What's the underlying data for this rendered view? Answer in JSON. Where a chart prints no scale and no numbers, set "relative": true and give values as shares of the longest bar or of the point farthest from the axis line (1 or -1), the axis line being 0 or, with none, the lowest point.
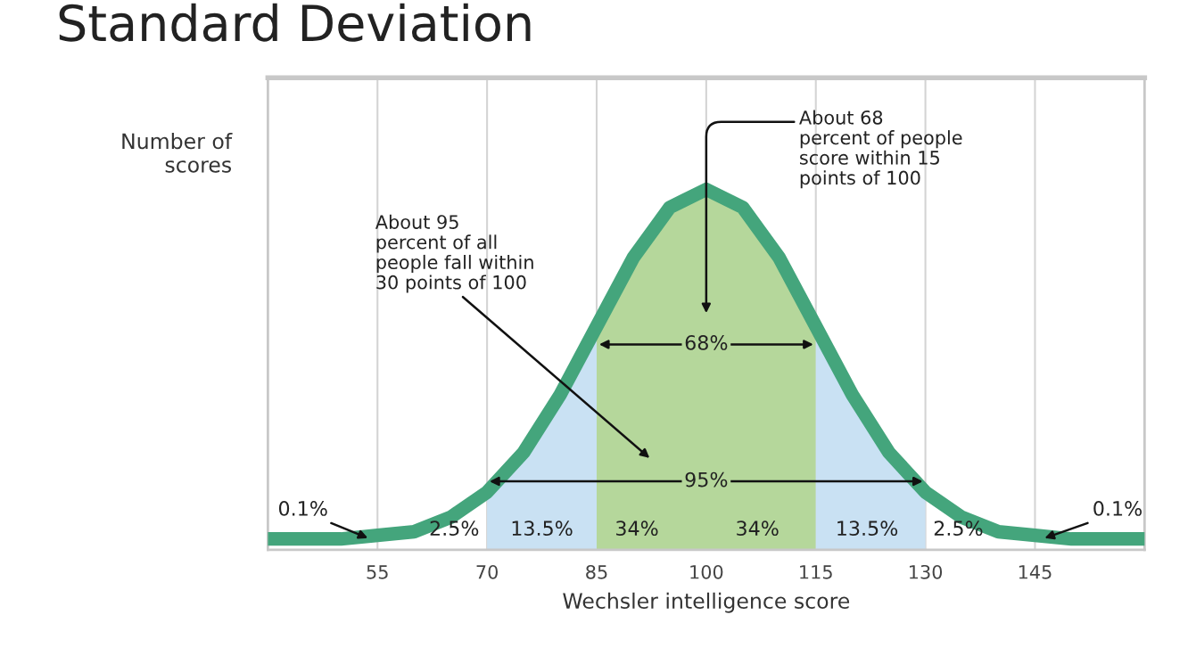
{
  "chart_data": {
    "type": "line",
    "title": "Standard Deviation",
    "xlabel": "Wechsler intelligence score",
    "ylabel": "Number of\nscores",
    "relative": true,
    "xlim": [
      40,
      160
    ],
    "xticks": [
      55,
      70,
      85,
      100,
      115,
      130,
      145
    ],
    "grid": "x",
    "x": [
      40,
      45,
      50,
      55,
      60,
      65,
      70,
      75,
      80,
      85,
      90,
      95,
      100,
      105,
      110,
      115,
      120,
      125,
      130,
      135,
      140,
      145,
      150,
      155,
      160
    ],
    "series": [
      {
        "type": "area",
        "color": "#c9e1f3",
        "x": [
          70,
          75,
          80,
          85
        ],
        "values": [
          0.16,
          0.27,
          0.43,
          0.62
        ]
      },
      {
        "type": "area",
        "color": "#b5d79b",
        "x": [
          85,
          90,
          95,
          100,
          105,
          110,
          115
        ],
        "values": [
          0.62,
          0.81,
          0.95,
          1,
          0.95,
          0.81,
          0.62
        ]
      },
      {
        "type": "area",
        "color": "#c9e1f3",
        "x": [
          115,
          120,
          125,
          130
        ],
        "values": [
          0.62,
          0.43,
          0.27,
          0.16
        ]
      },
      {
        "color": "#44a57c",
        "values": [
          0.03,
          0.03,
          0.03,
          0.04,
          0.05,
          0.09,
          0.16,
          0.27,
          0.43,
          0.62,
          0.81,
          0.95,
          1,
          0.95,
          0.81,
          0.62,
          0.43,
          0.27,
          0.16,
          0.09,
          0.05,
          0.04,
          0.03,
          0.03,
          0.03
        ]
      }
    ],
    "annotations": [
      "About 68\npercent of people\nscore within 15\npoints of 100",
      "About 95\npercent of all\npeople fall within\n30 points of 100",
      "68%",
      "95%",
      {
        "text": "0.1%",
        "x": 54,
        "y": 0.03
      },
      "2.5%",
      "13.5%",
      "34%",
      "34%",
      "13.5%",
      "2.5%",
      {
        "text": "0.1%",
        "x": 146,
        "y": 0.03
      }
    ]
  }
}
